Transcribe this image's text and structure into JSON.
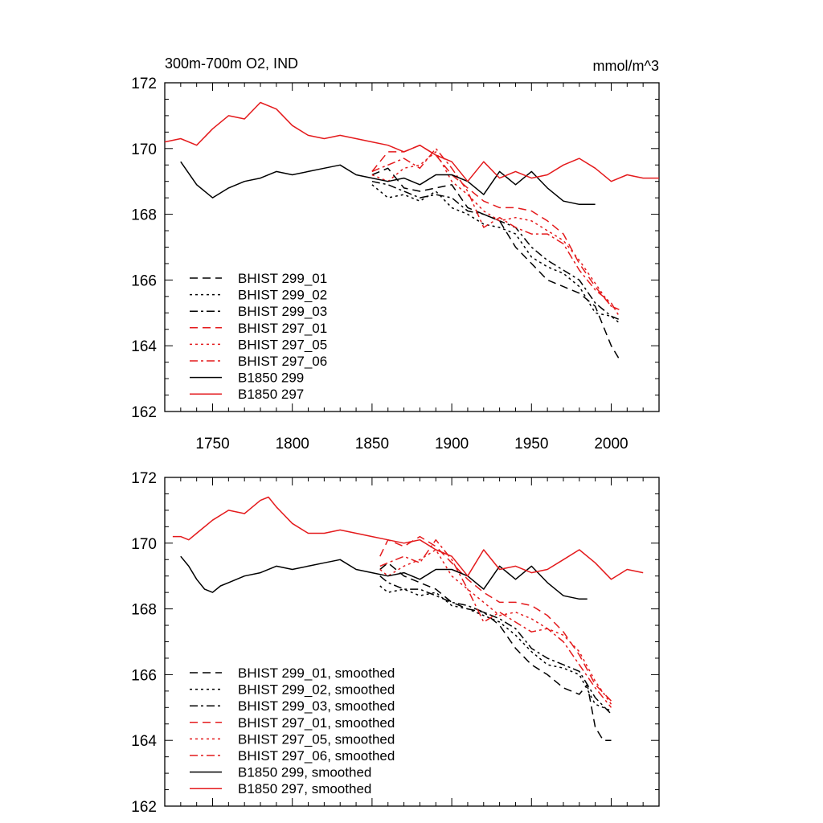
{
  "chart_data": [
    {
      "type": "line",
      "title": "300m-700m O2, IND",
      "units": "mmol/m^3",
      "xlim": [
        1720,
        2030
      ],
      "ylim": [
        162,
        172
      ],
      "x_ticks": [
        "1750",
        "1800",
        "1850",
        "1900",
        "1950",
        "2000"
      ],
      "y_ticks": [
        "162",
        "164",
        "166",
        "168",
        "170",
        "172"
      ],
      "legend_position": "bottom-left",
      "series": [
        {
          "name": "BHIST 299_01",
          "color": "#000000",
          "dash": "dash",
          "x": [
            1850,
            1860,
            1870,
            1880,
            1890,
            1900,
            1910,
            1920,
            1930,
            1940,
            1950,
            1960,
            1970,
            1980,
            1990,
            2000,
            2005
          ],
          "y": [
            169.2,
            169.4,
            168.8,
            168.7,
            168.8,
            168.9,
            168.2,
            168.0,
            167.8,
            167.0,
            166.5,
            166.0,
            165.8,
            165.6,
            165.2,
            164.0,
            163.6
          ]
        },
        {
          "name": "BHIST 299_02",
          "color": "#000000",
          "dash": "dot",
          "x": [
            1850,
            1860,
            1870,
            1880,
            1890,
            1900,
            1910,
            1920,
            1930,
            1940,
            1950,
            1960,
            1970,
            1980,
            1990,
            2000,
            2005
          ],
          "y": [
            168.9,
            168.5,
            168.6,
            168.4,
            168.7,
            168.2,
            168.0,
            167.7,
            167.6,
            167.4,
            166.7,
            166.4,
            166.2,
            165.8,
            165.0,
            164.9,
            164.7
          ]
        },
        {
          "name": "BHIST 299_03",
          "color": "#000000",
          "dash": "dashdot",
          "x": [
            1850,
            1860,
            1870,
            1880,
            1890,
            1900,
            1910,
            1920,
            1930,
            1940,
            1950,
            1960,
            1970,
            1980,
            1990,
            2000,
            2005
          ],
          "y": [
            169.0,
            168.9,
            168.7,
            168.5,
            168.6,
            168.5,
            168.1,
            168.0,
            167.8,
            167.6,
            167.0,
            166.6,
            166.3,
            166.0,
            165.3,
            164.9,
            164.8
          ]
        },
        {
          "name": "BHIST 297_01",
          "color": "#e41a1c",
          "dash": "dash",
          "x": [
            1850,
            1860,
            1870,
            1880,
            1890,
            1900,
            1910,
            1920,
            1930,
            1940,
            1950,
            1960,
            1970,
            1980,
            1990,
            2000,
            2005
          ],
          "y": [
            169.3,
            169.9,
            169.9,
            170.1,
            169.8,
            169.2,
            168.8,
            168.4,
            168.2,
            168.2,
            168.1,
            167.8,
            167.4,
            166.5,
            165.8,
            165.2,
            165.1
          ]
        },
        {
          "name": "BHIST 297_05",
          "color": "#e41a1c",
          "dash": "dot",
          "x": [
            1850,
            1860,
            1870,
            1880,
            1890,
            1900,
            1910,
            1920,
            1930,
            1940,
            1950,
            1960,
            1970,
            1980,
            1990,
            2000,
            2005
          ],
          "y": [
            169.2,
            169.0,
            169.4,
            169.5,
            169.9,
            169.0,
            168.6,
            168.1,
            167.8,
            167.9,
            167.8,
            167.5,
            167.2,
            166.6,
            165.9,
            165.2,
            165.1
          ]
        },
        {
          "name": "BHIST 297_06",
          "color": "#e41a1c",
          "dash": "dashdot",
          "x": [
            1850,
            1860,
            1870,
            1880,
            1890,
            1900,
            1910,
            1920,
            1930,
            1940,
            1950,
            1960,
            1970,
            1980,
            1990,
            2000,
            2005
          ],
          "y": [
            169.3,
            169.5,
            169.7,
            169.4,
            170.0,
            169.4,
            168.7,
            167.6,
            167.9,
            167.6,
            167.4,
            167.4,
            167.1,
            166.3,
            165.7,
            165.3,
            164.9
          ]
        },
        {
          "name": "B1850 299",
          "color": "#000000",
          "dash": "solid",
          "x": [
            1730,
            1740,
            1750,
            1760,
            1770,
            1780,
            1790,
            1800,
            1810,
            1820,
            1830,
            1840,
            1850,
            1860,
            1870,
            1880,
            1890,
            1900,
            1910,
            1920,
            1930,
            1940,
            1950,
            1960,
            1970,
            1980,
            1990
          ],
          "y": [
            169.6,
            168.9,
            168.5,
            168.8,
            169.0,
            169.1,
            169.3,
            169.2,
            169.3,
            169.4,
            169.5,
            169.2,
            169.1,
            169.0,
            169.1,
            168.9,
            169.2,
            169.2,
            169.0,
            168.6,
            169.3,
            168.9,
            169.3,
            168.8,
            168.4,
            168.3,
            168.3
          ]
        },
        {
          "name": "B1850 297",
          "color": "#e41a1c",
          "dash": "solid",
          "x": [
            1720,
            1730,
            1740,
            1750,
            1760,
            1770,
            1780,
            1790,
            1800,
            1810,
            1820,
            1830,
            1840,
            1850,
            1860,
            1870,
            1880,
            1890,
            1900,
            1910,
            1920,
            1930,
            1940,
            1950,
            1960,
            1970,
            1980,
            1990,
            2000,
            2010,
            2020,
            2030
          ],
          "y": [
            170.2,
            170.3,
            170.1,
            170.6,
            171.0,
            170.9,
            171.4,
            171.2,
            170.7,
            170.4,
            170.3,
            170.4,
            170.3,
            170.2,
            170.1,
            169.9,
            170.1,
            169.8,
            169.6,
            169.0,
            169.6,
            169.1,
            169.3,
            169.1,
            169.2,
            169.5,
            169.7,
            169.4,
            169.0,
            169.2,
            169.1,
            169.1
          ]
        }
      ]
    },
    {
      "type": "line",
      "xlim": [
        1720,
        2030
      ],
      "ylim": [
        162,
        172
      ],
      "y_ticks": [
        "162",
        "164",
        "166",
        "168",
        "170",
        "172"
      ],
      "legend_position": "bottom-left",
      "series": [
        {
          "name": "BHIST 299_01, smoothed",
          "color": "#000000",
          "dash": "dash",
          "x": [
            1855,
            1860,
            1870,
            1880,
            1890,
            1900,
            1910,
            1920,
            1930,
            1940,
            1950,
            1960,
            1970,
            1980,
            1985,
            1990,
            1995,
            2000
          ],
          "y": [
            169.2,
            169.4,
            169.0,
            168.8,
            168.6,
            168.2,
            168.0,
            167.9,
            167.5,
            166.8,
            166.3,
            166.0,
            165.6,
            165.4,
            165.7,
            164.4,
            164.0,
            164.0
          ]
        },
        {
          "name": "BHIST 299_02, smoothed",
          "color": "#000000",
          "dash": "dot",
          "x": [
            1855,
            1860,
            1870,
            1880,
            1890,
            1900,
            1910,
            1920,
            1930,
            1940,
            1950,
            1960,
            1970,
            1980,
            1990,
            2000
          ],
          "y": [
            168.7,
            168.5,
            168.6,
            168.4,
            168.5,
            168.1,
            168.0,
            167.8,
            167.6,
            167.2,
            166.7,
            166.3,
            166.2,
            166.0,
            165.1,
            164.9
          ]
        },
        {
          "name": "BHIST 299_03, smoothed",
          "color": "#000000",
          "dash": "dashdot",
          "x": [
            1855,
            1860,
            1870,
            1880,
            1890,
            1900,
            1910,
            1920,
            1930,
            1940,
            1950,
            1960,
            1970,
            1980,
            1990,
            2000
          ],
          "y": [
            169.0,
            168.8,
            168.6,
            168.6,
            168.4,
            168.2,
            168.1,
            167.9,
            167.7,
            167.4,
            166.8,
            166.5,
            166.3,
            166.1,
            165.3,
            164.8
          ]
        },
        {
          "name": "BHIST 297_01, smoothed",
          "color": "#e41a1c",
          "dash": "dash",
          "x": [
            1855,
            1860,
            1870,
            1880,
            1890,
            1900,
            1910,
            1920,
            1930,
            1940,
            1950,
            1960,
            1970,
            1980,
            1990,
            2000
          ],
          "y": [
            169.6,
            170.1,
            169.9,
            170.2,
            169.9,
            169.4,
            168.9,
            168.5,
            168.2,
            168.2,
            168.1,
            167.8,
            167.3,
            166.6,
            165.7,
            165.2
          ]
        },
        {
          "name": "BHIST 297_05, smoothed",
          "color": "#e41a1c",
          "dash": "dot",
          "x": [
            1855,
            1860,
            1870,
            1880,
            1890,
            1900,
            1910,
            1920,
            1930,
            1940,
            1950,
            1960,
            1970,
            1980,
            1990,
            2000
          ],
          "y": [
            169.2,
            169.0,
            169.3,
            169.5,
            169.8,
            169.0,
            168.6,
            168.2,
            167.8,
            167.9,
            167.7,
            167.4,
            167.2,
            166.7,
            165.8,
            165.1
          ]
        },
        {
          "name": "BHIST 297_06, smoothed",
          "color": "#e41a1c",
          "dash": "dashdot",
          "x": [
            1855,
            1860,
            1870,
            1880,
            1890,
            1900,
            1910,
            1920,
            1930,
            1940,
            1950,
            1960,
            1970,
            1980,
            1990,
            2000
          ],
          "y": [
            169.3,
            169.4,
            169.6,
            169.4,
            170.1,
            169.5,
            168.6,
            167.6,
            167.9,
            167.6,
            167.3,
            167.4,
            167.0,
            166.3,
            165.6,
            165.0
          ]
        },
        {
          "name": "B1850 299, smoothed",
          "color": "#000000",
          "dash": "solid",
          "x": [
            1730,
            1735,
            1740,
            1745,
            1750,
            1755,
            1760,
            1770,
            1780,
            1790,
            1800,
            1810,
            1820,
            1830,
            1840,
            1850,
            1860,
            1870,
            1880,
            1890,
            1900,
            1910,
            1920,
            1930,
            1940,
            1950,
            1960,
            1970,
            1980,
            1985
          ],
          "y": [
            169.6,
            169.3,
            168.9,
            168.6,
            168.5,
            168.7,
            168.8,
            169.0,
            169.1,
            169.3,
            169.2,
            169.3,
            169.4,
            169.5,
            169.2,
            169.1,
            169.0,
            169.1,
            168.9,
            169.2,
            169.2,
            169.0,
            168.6,
            169.3,
            168.9,
            169.3,
            168.8,
            168.4,
            168.3,
            168.3
          ]
        },
        {
          "name": "B1850 297, smoothed",
          "color": "#e41a1c",
          "dash": "solid",
          "x": [
            1725,
            1730,
            1735,
            1740,
            1750,
            1760,
            1770,
            1780,
            1785,
            1790,
            1800,
            1810,
            1820,
            1830,
            1840,
            1850,
            1860,
            1870,
            1880,
            1890,
            1900,
            1910,
            1920,
            1930,
            1940,
            1950,
            1960,
            1970,
            1980,
            1990,
            2000,
            2010,
            2020
          ],
          "y": [
            170.2,
            170.2,
            170.1,
            170.3,
            170.7,
            171.0,
            170.9,
            171.3,
            171.4,
            171.1,
            170.6,
            170.3,
            170.3,
            170.4,
            170.3,
            170.2,
            170.1,
            170.0,
            170.1,
            169.8,
            169.6,
            169.0,
            169.8,
            169.2,
            169.3,
            169.1,
            169.2,
            169.5,
            169.8,
            169.4,
            168.9,
            169.2,
            169.1
          ]
        }
      ]
    }
  ]
}
